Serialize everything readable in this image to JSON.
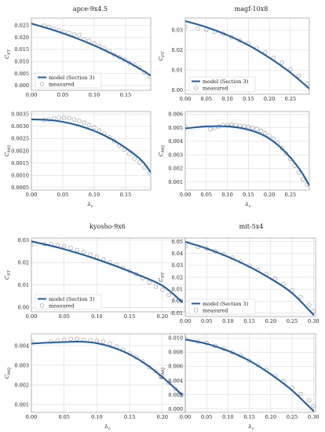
{
  "colors": {
    "model": "#1f5fa6",
    "measured": "#8c8c8c",
    "grid": "#d4d4d4"
  },
  "legend": {
    "model": "model (Section 3)",
    "measured": "measured"
  },
  "chart_data": [
    {
      "title": "apce-9x4.5",
      "type": "line",
      "xlim": [
        0,
        0.19
      ],
      "xticks": [
        "0.00",
        "0.05",
        "0.10",
        "0.15"
      ],
      "grid": true,
      "legend": "bottom-left",
      "top": {
        "ylabel": "CFT",
        "ylim": [
          -0.002,
          0.028
        ],
        "yticks": [
          "0.000",
          "0.005",
          "0.010",
          "0.015",
          "0.020",
          "0.025"
        ],
        "model": {
          "x": [
            0,
            0.025,
            0.05,
            0.075,
            0.1,
            0.125,
            0.15,
            0.175,
            0.19
          ],
          "y": [
            0.0257,
            0.0238,
            0.0217,
            0.0193,
            0.0166,
            0.0136,
            0.0103,
            0.0066,
            0.0041
          ]
        },
        "measured": {
          "x": [
            0.02,
            0.028,
            0.036,
            0.044,
            0.052,
            0.06,
            0.068,
            0.076,
            0.084,
            0.092,
            0.1,
            0.108,
            0.116,
            0.124,
            0.132,
            0.14,
            0.148,
            0.156,
            0.164,
            0.172,
            0.18,
            0.188
          ],
          "y": [
            0.0248,
            0.0243,
            0.0236,
            0.0229,
            0.0223,
            0.0218,
            0.0212,
            0.0209,
            0.0193,
            0.0186,
            0.0175,
            0.0164,
            0.0155,
            0.0143,
            0.0128,
            0.0117,
            0.0107,
            0.0094,
            0.0087,
            0.0074,
            0.0054,
            0.0037
          ]
        }
      },
      "bottom": {
        "ylabel": "CMQ",
        "ylim": [
          0.0004,
          0.0036
        ],
        "yticks": [
          "0.0005",
          "0.0010",
          "0.0015",
          "0.0020",
          "0.0025",
          "0.0030",
          "0.0035"
        ],
        "model": {
          "x": [
            0,
            0.025,
            0.05,
            0.075,
            0.1,
            0.125,
            0.15,
            0.175,
            0.19
          ],
          "y": [
            0.00328,
            0.00326,
            0.00318,
            0.00303,
            0.00281,
            0.00251,
            0.00212,
            0.00162,
            0.00113
          ]
        },
        "measured": {
          "x": [
            0.02,
            0.028,
            0.036,
            0.044,
            0.052,
            0.06,
            0.068,
            0.076,
            0.084,
            0.092,
            0.1,
            0.108,
            0.116,
            0.124,
            0.132,
            0.14,
            0.148,
            0.156,
            0.164,
            0.172,
            0.18,
            0.188
          ],
          "y": [
            0.00325,
            0.00328,
            0.00332,
            0.00334,
            0.00335,
            0.00333,
            0.00328,
            0.00322,
            0.00315,
            0.00305,
            0.00295,
            0.00283,
            0.0027,
            0.00255,
            0.00239,
            0.00223,
            0.00205,
            0.00188,
            0.00168,
            0.00152,
            0.00132,
            0.00112
          ]
        }
      },
      "xlabel": "λc"
    },
    {
      "title": "magf-10x8",
      "type": "line",
      "xlim": [
        0,
        0.295
      ],
      "xticks": [
        "0.00",
        "0.05",
        "0.10",
        "0.15",
        "0.20",
        "0.25"
      ],
      "grid": true,
      "legend": "bottom-left",
      "top": {
        "ylabel": "CFT",
        "ylim": [
          -0.002,
          0.036
        ],
        "yticks": [
          "0.00",
          "0.01",
          "0.02",
          "0.03"
        ],
        "model": {
          "x": [
            0,
            0.05,
            0.1,
            0.15,
            0.2,
            0.25,
            0.295
          ],
          "y": [
            0.0345,
            0.0315,
            0.0275,
            0.0225,
            0.0162,
            0.0088,
            0.0008
          ]
        },
        "measured": {
          "x": [
            0.0,
            0.03,
            0.05,
            0.07,
            0.09,
            0.11,
            0.13,
            0.15,
            0.17,
            0.19,
            0.21,
            0.23,
            0.25,
            0.27,
            0.29
          ],
          "y": [
            0.0315,
            0.0308,
            0.0302,
            0.0292,
            0.0282,
            0.0265,
            0.0248,
            0.0232,
            0.021,
            0.0188,
            0.0162,
            0.0138,
            0.0105,
            0.0072,
            0.0032
          ]
        }
      },
      "bottom": {
        "ylabel": "CMQ",
        "ylim": [
          0.0004,
          0.0062
        ],
        "yticks": [
          "0.001",
          "0.002",
          "0.003",
          "0.004",
          "0.005",
          "0.006"
        ],
        "model": {
          "x": [
            0,
            0.025,
            0.05,
            0.075,
            0.1,
            0.125,
            0.15,
            0.175,
            0.2,
            0.225,
            0.25,
            0.275,
            0.295
          ],
          "y": [
            0.00495,
            0.00504,
            0.0051,
            0.00512,
            0.0051,
            0.00502,
            0.00486,
            0.0046,
            0.0042,
            0.0036,
            0.0028,
            0.0018,
            0.00075
          ]
        },
        "measured": {
          "x": [
            0.0,
            0.06,
            0.07,
            0.08,
            0.09,
            0.1,
            0.11,
            0.12,
            0.13,
            0.14,
            0.15,
            0.16,
            0.17,
            0.18,
            0.19,
            0.2,
            0.21,
            0.22,
            0.23,
            0.24,
            0.25,
            0.26,
            0.27,
            0.28,
            0.29
          ],
          "y": [
            0.0051,
            0.0049,
            0.005,
            0.0051,
            0.0052,
            0.0052,
            0.00525,
            0.0052,
            0.00515,
            0.0051,
            0.00505,
            0.005,
            0.00492,
            0.00478,
            0.0046,
            0.0044,
            0.0042,
            0.0039,
            0.0035,
            0.0031,
            0.0027,
            0.0022,
            0.0017,
            0.0012,
            0.0008
          ]
        }
      },
      "xlabel": "λc"
    },
    {
      "title": "kyosho-9x6",
      "type": "line",
      "xlim": [
        0,
        0.235
      ],
      "xticks": [
        "0.00",
        "0.05",
        "0.10",
        "0.15",
        "0.20"
      ],
      "grid": true,
      "legend": "bottom-left",
      "top": {
        "ylabel": "CFT",
        "ylim": [
          -0.002,
          0.031
        ],
        "yticks": [
          "0.00",
          "0.01",
          "0.02",
          "0.03"
        ],
        "model": {
          "x": [
            0,
            0.04,
            0.08,
            0.12,
            0.16,
            0.2,
            0.23
          ],
          "y": [
            0.0295,
            0.0268,
            0.0234,
            0.0194,
            0.0149,
            0.0097,
            0.0025
          ]
        },
        "measured": {
          "x": [
            0.0,
            0.02,
            0.03,
            0.04,
            0.05,
            0.06,
            0.07,
            0.08,
            0.09,
            0.1,
            0.11,
            0.12,
            0.13,
            0.14,
            0.15,
            0.16,
            0.17,
            0.18,
            0.19,
            0.2,
            0.21,
            0.22
          ],
          "y": [
            0.028,
            0.0284,
            0.0282,
            0.0278,
            0.0273,
            0.0266,
            0.0256,
            0.0248,
            0.0236,
            0.0226,
            0.0214,
            0.0202,
            0.0191,
            0.0176,
            0.0163,
            0.0148,
            0.013,
            0.0111,
            0.0093,
            0.0078,
            0.0055,
            0.0038
          ]
        }
      },
      "bottom": {
        "ylabel": "CMQ",
        "ylim": [
          0.0006,
          0.0046
        ],
        "yticks": [
          "0.001",
          "0.002",
          "0.003",
          "0.004"
        ],
        "model": {
          "x": [
            0,
            0.025,
            0.05,
            0.075,
            0.1,
            0.125,
            0.15,
            0.175,
            0.2,
            0.23
          ],
          "y": [
            0.0041,
            0.00415,
            0.00418,
            0.0042,
            0.00412,
            0.0039,
            0.00355,
            0.00305,
            0.0024,
            0.0015
          ]
        },
        "measured": {
          "x": [
            0.0,
            0.03,
            0.04,
            0.05,
            0.06,
            0.07,
            0.08,
            0.09,
            0.1,
            0.11,
            0.12,
            0.13,
            0.14,
            0.15,
            0.16,
            0.17,
            0.18,
            0.19,
            0.2,
            0.21,
            0.22,
            0.23
          ],
          "y": [
            0.0042,
            0.0042,
            0.00425,
            0.0043,
            0.00435,
            0.00435,
            0.0043,
            0.00428,
            0.00425,
            0.0042,
            0.0041,
            0.00395,
            0.0038,
            0.0036,
            0.0034,
            0.0032,
            0.0029,
            0.0027,
            0.0024,
            0.0021,
            0.0018,
            0.0015
          ]
        }
      },
      "xlabel": "λc"
    },
    {
      "title": "mit-5x4",
      "type": "line",
      "xlim": [
        0,
        0.305
      ],
      "xticks": [
        "0.00",
        "0.05",
        "0.10",
        "0.15",
        "0.20",
        "0.25",
        "0.30"
      ],
      "grid": true,
      "legend": "bottom-left",
      "top": {
        "ylabel": "CFT",
        "ylim": [
          -0.013,
          0.053
        ],
        "yticks": [
          "-0.01",
          "0.00",
          "0.01",
          "0.02",
          "0.03",
          "0.04",
          "0.05"
        ],
        "model": {
          "x": [
            0,
            0.05,
            0.1,
            0.15,
            0.2,
            0.25,
            0.3
          ],
          "y": [
            0.0498,
            0.0442,
            0.0372,
            0.0288,
            0.0188,
            0.0067,
            -0.0115
          ]
        },
        "measured": {
          "x": [
            0.0,
            0.03,
            0.05,
            0.07,
            0.09,
            0.11,
            0.13,
            0.15,
            0.17,
            0.19,
            0.21,
            0.23,
            0.25,
            0.27,
            0.29,
            0.3
          ],
          "y": [
            0.046,
            0.0455,
            0.0442,
            0.0418,
            0.0395,
            0.0365,
            0.0332,
            0.0298,
            0.0262,
            0.0228,
            0.0188,
            0.0142,
            0.0088,
            0.0032,
            -0.0032,
            -0.0085
          ]
        }
      },
      "bottom": {
        "ylabel": "CMQ",
        "ylim": [
          -0.0005,
          0.0106
        ],
        "yticks": [
          "0.000",
          "0.002",
          "0.004",
          "0.006",
          "0.008",
          "0.010"
        ],
        "model": {
          "x": [
            0,
            0.05,
            0.1,
            0.15,
            0.2,
            0.25,
            0.3
          ],
          "y": [
            0.0098,
            0.0092,
            0.0082,
            0.0068,
            0.0049,
            0.0026,
            -0.0003
          ]
        },
        "measured": {
          "x": [
            0.0,
            0.03,
            0.05,
            0.07,
            0.09,
            0.11,
            0.13,
            0.15,
            0.17,
            0.19,
            0.21,
            0.23,
            0.25,
            0.27,
            0.29,
            0.3
          ],
          "y": [
            0.0099,
            0.0095,
            0.0093,
            0.0089,
            0.0085,
            0.008,
            0.0075,
            0.0068,
            0.0062,
            0.0055,
            0.0047,
            0.0039,
            0.003,
            0.0021,
            0.0012,
            0.0004
          ]
        }
      },
      "xlabel": "λc"
    }
  ]
}
